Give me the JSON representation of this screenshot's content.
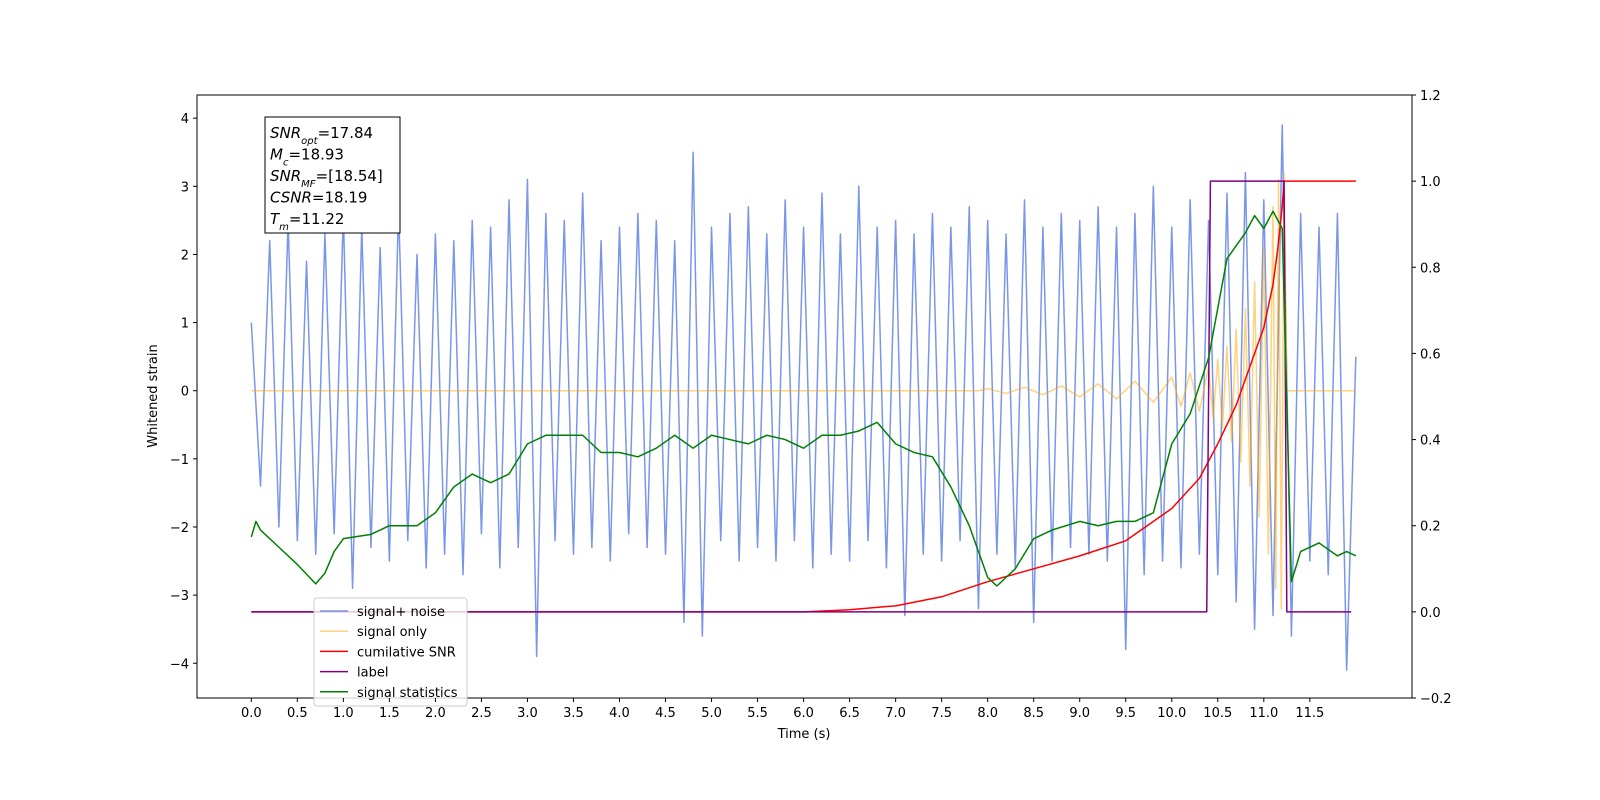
{
  "chart_data": {
    "type": "line",
    "xlabel": "Time (s)",
    "ylabel": "Whitened strain",
    "xlim": [
      -0.59,
      12.61
    ],
    "ylim": [
      -4.51,
      4.34
    ],
    "y2lim": [
      -0.2,
      1.2
    ],
    "xticks": [
      {
        "value": 0,
        "label": "0.0"
      },
      0.5,
      {
        "value": 1,
        "label": "1.0"
      },
      1.5,
      {
        "value": 2,
        "label": "2.0"
      },
      2.5,
      {
        "value": 3,
        "label": "3.0"
      },
      3.5,
      {
        "value": 4,
        "label": "4.0"
      },
      4.5,
      {
        "value": 5,
        "label": "5.0"
      },
      5.5,
      {
        "value": 6,
        "label": "6.0"
      },
      6.5,
      {
        "value": 7,
        "label": "7.0"
      },
      7.5,
      {
        "value": 8,
        "label": "8.0"
      },
      8.5,
      {
        "value": 9,
        "label": "9.0"
      },
      9.5,
      {
        "value": 10,
        "label": "10.0"
      },
      10.5,
      {
        "value": 11,
        "label": "11.0"
      },
      11.5
    ],
    "yticks": [
      {
        "value": -4,
        "label": "−4"
      },
      {
        "value": -3,
        "label": "−3"
      },
      {
        "value": -2,
        "label": "−2"
      },
      {
        "value": -1,
        "label": "−1"
      },
      0,
      1,
      2,
      3,
      4
    ],
    "y2ticks": [
      {
        "value": -0.2,
        "label": "−0.2"
      },
      {
        "value": 0,
        "label": "0.0"
      },
      0.2,
      0.4,
      0.6,
      0.8,
      {
        "value": 1,
        "label": "1.0"
      },
      1.2
    ],
    "annotation": [
      {
        "text": "SNR",
        "sub": "opt",
        "value": "=17.84"
      },
      {
        "text": "M",
        "sub": "c",
        "value": "=18.93"
      },
      {
        "text": "SNR",
        "sub": "MF",
        "value": "=[18.54]"
      },
      {
        "text": "CSNR",
        "value": "=18.19"
      },
      {
        "text": "T",
        "sub": "m",
        "value": "=11.22"
      }
    ],
    "series": [
      {
        "name": "signal+ noise",
        "color": "#4169e1",
        "x": [
          0,
          0.1,
          0.2,
          0.3,
          0.4,
          0.5,
          0.6,
          0.7,
          0.8,
          0.9,
          1,
          1.1,
          1.2,
          1.3,
          1.4,
          1.5,
          1.6,
          1.7,
          1.8,
          1.9,
          2,
          2.1,
          2.2,
          2.3,
          2.4,
          2.5,
          2.6,
          2.7,
          2.8,
          2.9,
          3,
          3.1,
          3.2,
          3.3,
          3.4,
          3.5,
          3.6,
          3.7,
          3.8,
          3.9,
          4,
          4.1,
          4.2,
          4.3,
          4.4,
          4.5,
          4.6,
          4.7,
          4.8,
          4.9,
          5,
          5.1,
          5.2,
          5.3,
          5.4,
          5.5,
          5.6,
          5.7,
          5.8,
          5.9,
          6,
          6.1,
          6.2,
          6.3,
          6.4,
          6.5,
          6.6,
          6.7,
          6.8,
          6.9,
          7,
          7.1,
          7.2,
          7.3,
          7.4,
          7.5,
          7.6,
          7.7,
          7.8,
          7.9,
          8,
          8.1,
          8.2,
          8.3,
          8.4,
          8.5,
          8.6,
          8.7,
          8.8,
          8.9,
          9,
          9.1,
          9.2,
          9.3,
          9.4,
          9.5,
          9.6,
          9.7,
          9.8,
          9.9,
          10,
          10.1,
          10.2,
          10.3,
          10.4,
          10.5,
          10.6,
          10.7,
          10.8,
          10.9,
          11,
          11.1,
          11.2,
          11.3,
          11.4,
          11.5,
          11.6,
          11.7,
          11.8,
          11.9,
          12
        ],
        "values": [
          1.0,
          -1.4,
          2.2,
          -2.0,
          2.5,
          -2.2,
          1.9,
          -2.4,
          2.3,
          -2.1,
          2.6,
          -2.9,
          2.4,
          -2.3,
          2.1,
          -2.5,
          2.7,
          -2.2,
          2.0,
          -2.6,
          2.3,
          -2.4,
          2.2,
          -2.7,
          2.5,
          -2.1,
          2.4,
          -2.6,
          2.8,
          -2.3,
          3.1,
          -3.9,
          2.6,
          -2.2,
          2.5,
          -2.4,
          2.9,
          -2.3,
          2.2,
          -2.5,
          2.4,
          -2.1,
          2.6,
          -2.3,
          2.5,
          -2.4,
          2.2,
          -3.4,
          3.5,
          -3.6,
          2.4,
          -2.2,
          2.6,
          -2.5,
          2.7,
          -2.3,
          2.3,
          -2.5,
          2.8,
          -2.2,
          2.4,
          -2.6,
          2.9,
          -2.4,
          2.3,
          -2.5,
          3.0,
          -2.2,
          2.4,
          -2.6,
          2.5,
          -3.3,
          2.3,
          -2.4,
          2.6,
          -2.5,
          2.4,
          -2.2,
          2.7,
          -3.2,
          2.5,
          -2.4,
          2.3,
          -2.6,
          2.8,
          -3.4,
          2.4,
          -2.5,
          2.6,
          -2.3,
          2.5,
          -2.4,
          2.7,
          -2.5,
          2.4,
          -3.8,
          2.6,
          -2.7,
          3.0,
          -2.5,
          2.4,
          -2.6,
          2.8,
          -2.4,
          2.5,
          -2.7,
          2.9,
          -3.1,
          3.2,
          -3.5,
          2.8,
          -3.3,
          3.9,
          -3.6,
          2.6,
          -2.5,
          2.4,
          -2.7,
          2.6,
          -4.1,
          0.5
        ]
      },
      {
        "name": "signal only",
        "color": "#ffa500",
        "x": [
          0,
          7.9,
          8.0,
          8.2,
          8.4,
          8.6,
          8.8,
          9.0,
          9.2,
          9.4,
          9.6,
          9.8,
          10.0,
          10.1,
          10.2,
          10.3,
          10.4,
          10.45,
          10.5,
          10.55,
          10.6,
          10.65,
          10.7,
          10.75,
          10.8,
          10.85,
          10.9,
          10.95,
          11.0,
          11.05,
          11.1,
          11.13,
          11.16,
          11.19,
          11.22,
          11.25,
          12.0
        ],
        "values": [
          0,
          0,
          0.03,
          -0.04,
          0.05,
          -0.06,
          0.07,
          -0.09,
          0.1,
          -0.12,
          0.14,
          -0.17,
          0.2,
          -0.23,
          0.26,
          -0.3,
          0.35,
          -0.4,
          0.46,
          -0.55,
          0.65,
          -0.75,
          0.9,
          -1.05,
          1.2,
          -1.4,
          1.6,
          -1.85,
          2.1,
          -2.4,
          2.7,
          -2.9,
          3.1,
          -3.2,
          3.2,
          0,
          0
        ]
      },
      {
        "name": "cumilative SNR",
        "color": "#ff0000",
        "axis": "y2",
        "x": [
          0,
          6.0,
          6.5,
          7.0,
          7.5,
          8.0,
          8.5,
          9.0,
          9.5,
          10.0,
          10.3,
          10.5,
          10.7,
          10.9,
          11.0,
          11.1,
          11.15,
          11.2,
          11.22,
          12.0
        ],
        "values": [
          0,
          0,
          0.005,
          0.014,
          0.035,
          0.07,
          0.1,
          0.13,
          0.165,
          0.24,
          0.31,
          0.39,
          0.48,
          0.6,
          0.66,
          0.76,
          0.84,
          0.94,
          1.0,
          1.0
        ]
      },
      {
        "name": "label",
        "color": "#800080",
        "axis": "y2",
        "x": [
          0,
          10.38,
          10.42,
          11.22,
          11.25,
          11.95
        ],
        "values": [
          0,
          0,
          1,
          1,
          0,
          0
        ]
      },
      {
        "name": "signal statistics",
        "color": "#008000",
        "axis": "y2",
        "x": [
          0,
          0.05,
          0.1,
          0.3,
          0.5,
          0.7,
          0.8,
          0.9,
          1.0,
          1.3,
          1.5,
          1.8,
          2.0,
          2.2,
          2.4,
          2.6,
          2.8,
          3.0,
          3.2,
          3.4,
          3.6,
          3.8,
          4.0,
          4.2,
          4.4,
          4.6,
          4.8,
          5.0,
          5.2,
          5.4,
          5.6,
          5.8,
          6.0,
          6.2,
          6.4,
          6.6,
          6.8,
          7.0,
          7.2,
          7.4,
          7.6,
          7.8,
          8.0,
          8.1,
          8.3,
          8.5,
          8.7,
          9.0,
          9.2,
          9.4,
          9.6,
          9.8,
          10.0,
          10.2,
          10.4,
          10.6,
          10.8,
          10.9,
          11.0,
          11.1,
          11.2,
          11.3,
          11.4,
          11.6,
          11.8,
          11.9,
          12.0
        ],
        "values": [
          0.174,
          0.21,
          0.19,
          0.15,
          0.11,
          0.065,
          0.09,
          0.14,
          0.17,
          0.18,
          0.2,
          0.2,
          0.23,
          0.29,
          0.32,
          0.3,
          0.32,
          0.39,
          0.41,
          0.41,
          0.41,
          0.37,
          0.37,
          0.36,
          0.38,
          0.41,
          0.38,
          0.41,
          0.4,
          0.39,
          0.41,
          0.4,
          0.38,
          0.41,
          0.41,
          0.42,
          0.44,
          0.39,
          0.37,
          0.36,
          0.29,
          0.2,
          0.08,
          0.06,
          0.1,
          0.17,
          0.19,
          0.21,
          0.2,
          0.21,
          0.21,
          0.23,
          0.39,
          0.46,
          0.59,
          0.82,
          0.88,
          0.92,
          0.89,
          0.93,
          0.89,
          0.07,
          0.14,
          0.16,
          0.13,
          0.14,
          0.13
        ]
      }
    ]
  }
}
